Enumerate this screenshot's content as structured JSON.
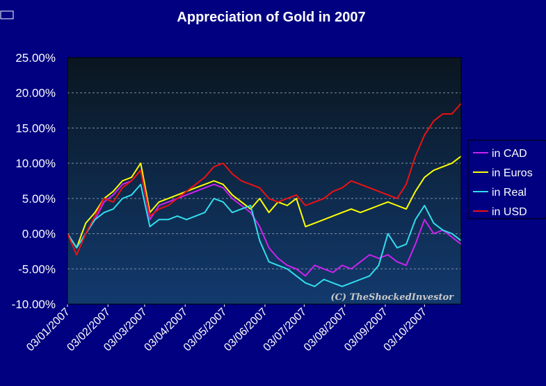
{
  "chart_data": {
    "type": "line",
    "title": "Appreciation of Gold in 2007",
    "xlabel": "",
    "ylabel": "",
    "ylim": [
      -0.1,
      0.25
    ],
    "ytick_step": 0.05,
    "yticks": [
      "-10.00%",
      "-5.00%",
      "0.00%",
      "5.00%",
      "10.00%",
      "15.00%",
      "20.00%",
      "25.00%"
    ],
    "xticks": [
      "03/01/2007",
      "03/02/2007",
      "03/03/2007",
      "03/04/2007",
      "03/05/2007",
      "03/06/2007",
      "03/07/2007",
      "03/08/2007",
      "03/09/2007",
      "03/10/2007"
    ],
    "grid": true,
    "legend_position": "right",
    "watermark": "(C) TheShockedInvestor",
    "colors": {
      "page_background": "#000080",
      "plot_gradient_top": "#0a1620",
      "plot_gradient_bottom": "#123a6e",
      "grid": "#7f8fa8"
    },
    "series": [
      {
        "name": "in CAD",
        "color": "#cc22ee",
        "x": [
          "2007-01-03",
          "2007-01-10",
          "2007-01-17",
          "2007-01-24",
          "2007-01-31",
          "2007-02-07",
          "2007-02-14",
          "2007-02-21",
          "2007-02-28",
          "2007-03-07",
          "2007-03-14",
          "2007-03-21",
          "2007-03-28",
          "2007-04-04",
          "2007-04-11",
          "2007-04-18",
          "2007-04-25",
          "2007-05-02",
          "2007-05-09",
          "2007-05-16",
          "2007-05-23",
          "2007-05-30",
          "2007-06-06",
          "2007-06-13",
          "2007-06-20",
          "2007-06-27",
          "2007-07-04",
          "2007-07-11",
          "2007-07-18",
          "2007-07-25",
          "2007-08-01",
          "2007-08-08",
          "2007-08-15",
          "2007-08-22",
          "2007-08-29",
          "2007-09-05",
          "2007-09-12",
          "2007-09-19",
          "2007-09-26",
          "2007-10-03",
          "2007-10-10",
          "2007-10-17",
          "2007-10-24",
          "2007-10-31"
        ],
        "values": [
          0.0,
          -0.02,
          0.0,
          0.02,
          0.045,
          0.055,
          0.07,
          0.075,
          0.09,
          0.02,
          0.04,
          0.045,
          0.05,
          0.055,
          0.06,
          0.065,
          0.07,
          0.065,
          0.05,
          0.04,
          0.03,
          0.01,
          -0.02,
          -0.035,
          -0.045,
          -0.05,
          -0.06,
          -0.045,
          -0.05,
          -0.055,
          -0.045,
          -0.05,
          -0.04,
          -0.03,
          -0.035,
          -0.03,
          -0.04,
          -0.045,
          -0.015,
          0.02,
          0.0,
          0.005,
          -0.005,
          -0.015
        ]
      },
      {
        "name": "in Euros",
        "color": "#ffff00",
        "x": [
          "2007-01-03",
          "2007-01-10",
          "2007-01-17",
          "2007-01-24",
          "2007-01-31",
          "2007-02-07",
          "2007-02-14",
          "2007-02-21",
          "2007-02-28",
          "2007-03-07",
          "2007-03-14",
          "2007-03-21",
          "2007-03-28",
          "2007-04-04",
          "2007-04-11",
          "2007-04-18",
          "2007-04-25",
          "2007-05-02",
          "2007-05-09",
          "2007-05-16",
          "2007-05-23",
          "2007-05-30",
          "2007-06-06",
          "2007-06-13",
          "2007-06-20",
          "2007-06-27",
          "2007-07-04",
          "2007-07-11",
          "2007-07-18",
          "2007-07-25",
          "2007-08-01",
          "2007-08-08",
          "2007-08-15",
          "2007-08-22",
          "2007-08-29",
          "2007-09-05",
          "2007-09-12",
          "2007-09-19",
          "2007-09-26",
          "2007-10-03",
          "2007-10-10",
          "2007-10-17",
          "2007-10-24",
          "2007-10-31"
        ],
        "values": [
          0.0,
          -0.02,
          0.015,
          0.03,
          0.05,
          0.06,
          0.075,
          0.08,
          0.1,
          0.03,
          0.045,
          0.05,
          0.055,
          0.06,
          0.065,
          0.07,
          0.075,
          0.07,
          0.055,
          0.045,
          0.035,
          0.05,
          0.03,
          0.045,
          0.04,
          0.05,
          0.01,
          0.015,
          0.02,
          0.025,
          0.03,
          0.035,
          0.03,
          0.035,
          0.04,
          0.045,
          0.04,
          0.035,
          0.06,
          0.08,
          0.09,
          0.095,
          0.1,
          0.11
        ]
      },
      {
        "name": "in Real",
        "color": "#33ddee",
        "x": [
          "2007-01-03",
          "2007-01-10",
          "2007-01-17",
          "2007-01-24",
          "2007-01-31",
          "2007-02-07",
          "2007-02-14",
          "2007-02-21",
          "2007-02-28",
          "2007-03-07",
          "2007-03-14",
          "2007-03-21",
          "2007-03-28",
          "2007-04-04",
          "2007-04-11",
          "2007-04-18",
          "2007-04-25",
          "2007-05-02",
          "2007-05-09",
          "2007-05-16",
          "2007-05-23",
          "2007-05-30",
          "2007-06-06",
          "2007-06-13",
          "2007-06-20",
          "2007-06-27",
          "2007-07-04",
          "2007-07-11",
          "2007-07-18",
          "2007-07-25",
          "2007-08-01",
          "2007-08-08",
          "2007-08-15",
          "2007-08-22",
          "2007-08-29",
          "2007-09-05",
          "2007-09-12",
          "2007-09-19",
          "2007-09-26",
          "2007-10-03",
          "2007-10-10",
          "2007-10-17",
          "2007-10-24",
          "2007-10-31"
        ],
        "values": [
          0.0,
          -0.02,
          0.0,
          0.02,
          0.03,
          0.035,
          0.05,
          0.055,
          0.07,
          0.01,
          0.02,
          0.02,
          0.025,
          0.02,
          0.025,
          0.03,
          0.05,
          0.045,
          0.03,
          0.035,
          0.04,
          -0.01,
          -0.04,
          -0.045,
          -0.05,
          -0.06,
          -0.07,
          -0.075,
          -0.065,
          -0.07,
          -0.075,
          -0.07,
          -0.065,
          -0.06,
          -0.045,
          0.0,
          -0.02,
          -0.015,
          0.02,
          0.04,
          0.015,
          0.005,
          0.0,
          -0.01
        ]
      },
      {
        "name": "in USD",
        "color": "#ee1111",
        "x": [
          "2007-01-03",
          "2007-01-10",
          "2007-01-17",
          "2007-01-24",
          "2007-01-31",
          "2007-02-07",
          "2007-02-14",
          "2007-02-21",
          "2007-02-28",
          "2007-03-07",
          "2007-03-14",
          "2007-03-21",
          "2007-03-28",
          "2007-04-04",
          "2007-04-11",
          "2007-04-18",
          "2007-04-25",
          "2007-05-02",
          "2007-05-09",
          "2007-05-16",
          "2007-05-23",
          "2007-05-30",
          "2007-06-06",
          "2007-06-13",
          "2007-06-20",
          "2007-06-27",
          "2007-07-04",
          "2007-07-11",
          "2007-07-18",
          "2007-07-25",
          "2007-08-01",
          "2007-08-08",
          "2007-08-15",
          "2007-08-22",
          "2007-08-29",
          "2007-09-05",
          "2007-09-12",
          "2007-09-19",
          "2007-09-26",
          "2007-10-03",
          "2007-10-10",
          "2007-10-17",
          "2007-10-24",
          "2007-10-31"
        ],
        "values": [
          0.0,
          -0.03,
          0.0,
          0.025,
          0.05,
          0.045,
          0.065,
          0.075,
          0.09,
          0.025,
          0.035,
          0.04,
          0.05,
          0.06,
          0.07,
          0.08,
          0.095,
          0.1,
          0.085,
          0.075,
          0.07,
          0.065,
          0.05,
          0.045,
          0.05,
          0.055,
          0.04,
          0.045,
          0.05,
          0.06,
          0.065,
          0.075,
          0.07,
          0.065,
          0.06,
          0.055,
          0.05,
          0.07,
          0.11,
          0.14,
          0.16,
          0.17,
          0.17,
          0.185
        ]
      }
    ]
  }
}
